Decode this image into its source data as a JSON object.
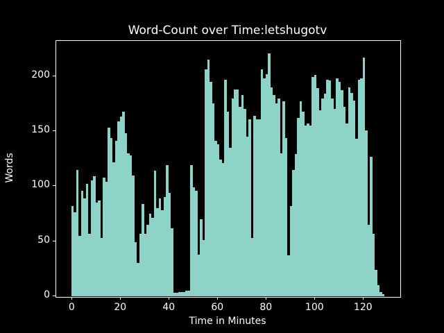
{
  "title": "Word-Count over Time:letshugotv",
  "x_axis_label": "Time in Minutes",
  "y_axis_label": "Words",
  "colors": {
    "background": "#000000",
    "bar": "#8dd3c7",
    "text": "#ffffff",
    "spine": "#ffffff"
  },
  "chart_data": {
    "type": "bar",
    "title": "Word-Count over Time:letshugotv",
    "xlabel": "Time in Minutes",
    "ylabel": "Words",
    "x_start_minute": 0,
    "x_step_minutes": 1,
    "values": [
      82,
      76,
      115,
      55,
      96,
      89,
      102,
      57,
      105,
      109,
      85,
      87,
      53,
      108,
      104,
      153,
      144,
      122,
      141,
      159,
      163,
      168,
      148,
      130,
      128,
      110,
      49,
      30,
      57,
      84,
      57,
      65,
      75,
      71,
      114,
      80,
      89,
      78,
      90,
      119,
      94,
      62,
      3,
      3,
      4,
      4,
      4,
      5,
      5,
      119,
      99,
      96,
      38,
      70,
      51,
      206,
      215,
      195,
      175,
      141,
      138,
      124,
      121,
      197,
      168,
      135,
      180,
      188,
      188,
      172,
      183,
      170,
      145,
      161,
      53,
      164,
      161,
      161,
      206,
      198,
      202,
      221,
      190,
      183,
      175,
      180,
      130,
      177,
      144,
      37,
      82,
      115,
      129,
      162,
      177,
      168,
      155,
      157,
      155,
      199,
      201,
      189,
      169,
      180,
      184,
      197,
      196,
      180,
      170,
      198,
      195,
      187,
      172,
      157,
      190,
      185,
      178,
      143,
      197,
      198,
      217,
      151,
      65,
      127,
      57,
      24,
      10,
      4,
      2
    ],
    "xticks": [
      0,
      20,
      40,
      60,
      80,
      100,
      120
    ],
    "yticks": [
      0,
      50,
      100,
      150,
      200
    ],
    "xlim": [
      -6.6,
      135
    ],
    "ylim": [
      0,
      232
    ],
    "grid": false,
    "legend": null,
    "background_style": "dark"
  }
}
